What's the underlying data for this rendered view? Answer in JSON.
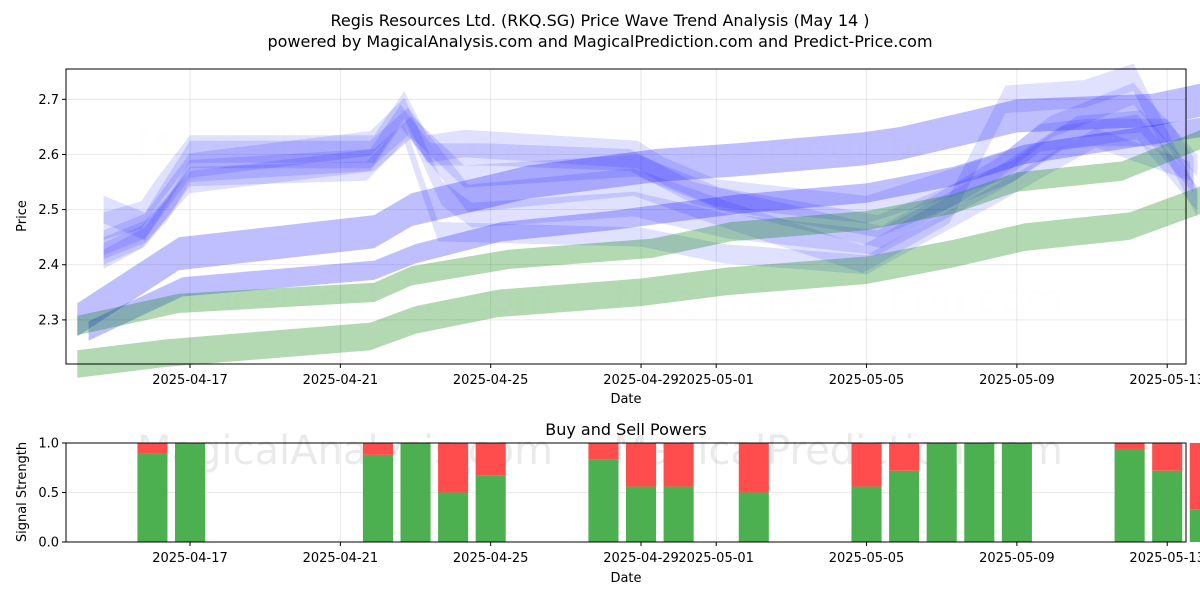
{
  "title_line1": "Regis Resources Ltd. (RKQ.SG) Price Wave Trend Analysis (May 14 )",
  "title_line2": "powered by MagicalAnalysis.com and MagicalPrediction.com and Predict-Price.com",
  "watermarks": [
    "MagicalAnalysis.com",
    "MagicalPrediction.com"
  ],
  "colors": {
    "blue_band": "#0000ff",
    "green_band": "#008000",
    "buy": "#4caf50",
    "sell": "#ff4d4d"
  },
  "chart_data": [
    {
      "type": "area",
      "xlabel": "Date",
      "ylabel": "Price",
      "xlim": [
        -3.3,
        26.5
      ],
      "ylim": [
        2.22,
        2.755
      ],
      "yticks": [
        2.3,
        2.4,
        2.5,
        2.6,
        2.7
      ],
      "xticks": [
        {
          "pos": 0,
          "label": "2025-04-17"
        },
        {
          "pos": 4,
          "label": "2025-04-21"
        },
        {
          "pos": 8,
          "label": "2025-04-25"
        },
        {
          "pos": 12,
          "label": "2025-04-29"
        },
        {
          "pos": 14,
          "label": "2025-05-01"
        },
        {
          "pos": 18,
          "label": "2025-05-05"
        },
        {
          "pos": 22,
          "label": "2025-05-09"
        },
        {
          "pos": 26,
          "label": "2025-05-13"
        }
      ],
      "series": [
        {
          "name": "blue-wave-1",
          "color": "blue",
          "opacity": 0.12,
          "width": 0.05,
          "x": [
            -2.3,
            -1.3,
            -0.9,
            0,
            4.9,
            5.7,
            6.3,
            7.3,
            11.9,
            12.6,
            14.0,
            18.0,
            21.7,
            22.6,
            23.9,
            26.0,
            26.7
          ],
          "y": [
            2.47,
            2.49,
            2.53,
            2.61,
            2.61,
            2.69,
            2.61,
            2.62,
            2.6,
            2.57,
            2.53,
            2.5,
            2.58,
            2.63,
            2.64,
            2.64,
            2.57
          ]
        },
        {
          "name": "blue-wave-2",
          "color": "blue",
          "opacity": 0.12,
          "width": 0.045,
          "x": [
            -2.3,
            -1.2,
            0,
            4.8,
            5.7,
            6.7,
            7.5,
            11.8,
            14.3,
            18.3,
            21.6,
            23.2,
            25.2,
            26.8
          ],
          "y": [
            2.44,
            2.47,
            2.58,
            2.62,
            2.68,
            2.53,
            2.49,
            2.51,
            2.47,
            2.44,
            2.56,
            2.63,
            2.65,
            2.52
          ]
        },
        {
          "name": "blue-wave-3",
          "color": "blue",
          "opacity": 0.12,
          "width": 0.04,
          "x": [
            -2.3,
            -1.3,
            -0.6,
            0,
            4.8,
            5.6,
            6.4,
            7.9,
            11.7,
            13.4,
            18.4,
            21.4,
            22.9,
            25.1,
            26.8
          ],
          "y": [
            2.42,
            2.45,
            2.5,
            2.57,
            2.59,
            2.67,
            2.6,
            2.6,
            2.59,
            2.53,
            2.45,
            2.57,
            2.65,
            2.71,
            2.58
          ]
        },
        {
          "name": "blue-wave-4",
          "color": "blue",
          "opacity": 0.12,
          "width": 0.04,
          "x": [
            -2.3,
            -1.2,
            0,
            4.9,
            5.9,
            7.3,
            11.9,
            14.1,
            18.3,
            21.9,
            23.6,
            25.3,
            26.7
          ],
          "y": [
            2.43,
            2.46,
            2.55,
            2.59,
            2.65,
            2.56,
            2.58,
            2.52,
            2.47,
            2.57,
            2.65,
            2.66,
            2.55
          ]
        },
        {
          "name": "blue-wave-5",
          "color": "blue",
          "opacity": 0.12,
          "width": 0.035,
          "x": [
            -2.3,
            -1.2,
            0,
            4.7,
            5.7,
            6.6,
            12.0,
            14.2,
            18.0,
            21.5,
            24.1,
            26.6
          ],
          "y": [
            2.41,
            2.45,
            2.56,
            2.57,
            2.64,
            2.46,
            2.45,
            2.42,
            2.4,
            2.53,
            2.63,
            2.57
          ]
        },
        {
          "name": "blue-wave-6",
          "color": "blue",
          "opacity": 0.12,
          "width": 0.05,
          "x": [
            -2.3,
            -1.2,
            0,
            4.8,
            5.8,
            7.4,
            11.8,
            14.3,
            17.9,
            20.2,
            21.7,
            23.8,
            25.1,
            26.8
          ],
          "y": [
            2.5,
            2.47,
            2.6,
            2.6,
            2.66,
            2.52,
            2.55,
            2.49,
            2.41,
            2.5,
            2.7,
            2.71,
            2.74,
            2.51
          ]
        },
        {
          "name": "blue-trend-1",
          "color": "blue",
          "opacity": 0.25,
          "width": 0.06,
          "x": [
            -3.0,
            -0.3,
            4.9,
            5.9,
            9.0,
            12.4,
            14.5,
            17.9,
            18.9,
            20.8,
            22.0,
            25.6,
            27.0
          ],
          "y": [
            2.3,
            2.42,
            2.46,
            2.5,
            2.55,
            2.58,
            2.59,
            2.61,
            2.62,
            2.65,
            2.67,
            2.68,
            2.7
          ]
        },
        {
          "name": "blue-trend-2",
          "color": "blue",
          "opacity": 0.25,
          "width": 0.035,
          "x": [
            -2.7,
            -0.2,
            4.9,
            6.0,
            8.3,
            11.2,
            12.3,
            14.6,
            18.0,
            20.3,
            22.2,
            27.0
          ],
          "y": [
            2.28,
            2.36,
            2.39,
            2.42,
            2.46,
            2.48,
            2.49,
            2.51,
            2.53,
            2.56,
            2.6,
            2.65
          ]
        },
        {
          "name": "green-trend-1",
          "color": "green",
          "opacity": 0.3,
          "width": 0.035,
          "x": [
            -3.0,
            -0.3,
            4.9,
            5.9,
            8.5,
            12.3,
            14.4,
            18.0,
            20.3,
            22.0,
            24.8,
            27.0
          ],
          "y": [
            2.29,
            2.33,
            2.35,
            2.38,
            2.41,
            2.43,
            2.46,
            2.48,
            2.51,
            2.55,
            2.57,
            2.63
          ]
        },
        {
          "name": "green-trend-2",
          "color": "green",
          "opacity": 0.3,
          "width": 0.05,
          "x": [
            -3.0,
            -0.6,
            4.8,
            6.0,
            8.2,
            12.0,
            14.3,
            18.0,
            20.3,
            22.2,
            25.0,
            27.0
          ],
          "y": [
            2.22,
            2.24,
            2.27,
            2.3,
            2.33,
            2.35,
            2.37,
            2.39,
            2.42,
            2.45,
            2.47,
            2.52
          ]
        }
      ]
    },
    {
      "type": "bar",
      "title": "Buy and Sell Powers",
      "xlabel": "Date",
      "ylabel": "Signal Strength",
      "xlim": [
        -3.3,
        26.5
      ],
      "ylim": [
        0,
        1
      ],
      "yticks": [
        0.0,
        0.5,
        1.0
      ],
      "ytick_labels": [
        "0.0",
        "0.5",
        "1.0"
      ],
      "xticks": [
        {
          "pos": 0,
          "label": "2025-04-17"
        },
        {
          "pos": 4,
          "label": "2025-04-21"
        },
        {
          "pos": 8,
          "label": "2025-04-25"
        },
        {
          "pos": 12,
          "label": "2025-04-29"
        },
        {
          "pos": 14,
          "label": "2025-05-01"
        },
        {
          "pos": 18,
          "label": "2025-05-05"
        },
        {
          "pos": 22,
          "label": "2025-05-09"
        },
        {
          "pos": 26,
          "label": "2025-05-13"
        }
      ],
      "bars": [
        {
          "x": -1,
          "buy": 0.89
        },
        {
          "x": 0,
          "buy": 1.0
        },
        {
          "x": 5,
          "buy": 0.88
        },
        {
          "x": 6,
          "buy": 1.0
        },
        {
          "x": 7,
          "buy": 0.5
        },
        {
          "x": 8,
          "buy": 0.67
        },
        {
          "x": 11,
          "buy": 0.83
        },
        {
          "x": 12,
          "buy": 0.56
        },
        {
          "x": 13,
          "buy": 0.56
        },
        {
          "x": 15,
          "buy": 0.5
        },
        {
          "x": 18,
          "buy": 0.56
        },
        {
          "x": 19,
          "buy": 0.72
        },
        {
          "x": 20,
          "buy": 1.0
        },
        {
          "x": 21,
          "buy": 1.0
        },
        {
          "x": 22,
          "buy": 1.0
        },
        {
          "x": 25,
          "buy": 0.94
        },
        {
          "x": 26,
          "buy": 0.72
        },
        {
          "x": 27,
          "buy": 0.33
        }
      ]
    }
  ]
}
